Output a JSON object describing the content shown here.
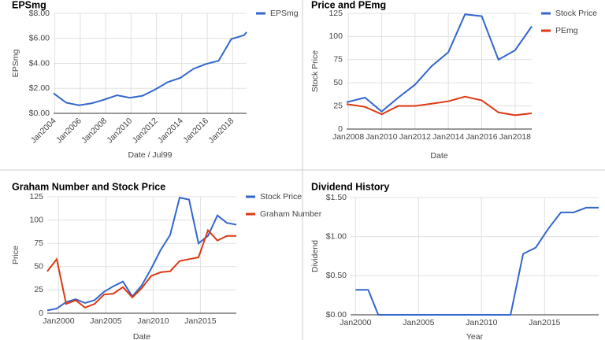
{
  "chart_data": [
    {
      "type": "line",
      "title": "EPSmg",
      "x_label": "Date / Jul99",
      "y_label": "EPSmg",
      "x": [
        2003.9,
        2004.9,
        2005.9,
        2006.9,
        2007.9,
        2008.9,
        2009.9,
        2010.9,
        2011.9,
        2012.9,
        2013.9,
        2014.9,
        2015.9,
        2016.9,
        2017.9,
        2018.9,
        2019.1
      ],
      "series": [
        {
          "name": "EPSmg",
          "color": "#3366cc",
          "values": [
            1.6,
            0.85,
            0.65,
            0.8,
            1.1,
            1.45,
            1.25,
            1.4,
            1.9,
            2.5,
            2.85,
            3.55,
            3.95,
            4.2,
            5.95,
            6.25,
            6.5
          ]
        }
      ],
      "xlim": [
        2003.9,
        2019.1
      ],
      "xticks": [
        {
          "value": 2004,
          "label": "Jan2004"
        },
        {
          "value": 2006,
          "label": "Jan2006"
        },
        {
          "value": 2008,
          "label": "Jan2008"
        },
        {
          "value": 2010,
          "label": "Jan2010"
        },
        {
          "value": 2012,
          "label": "Jan2012"
        },
        {
          "value": 2014,
          "label": "Jan2014"
        },
        {
          "value": 2016,
          "label": "Jan2016"
        },
        {
          "value": 2018,
          "label": "Jan2018"
        }
      ],
      "ylim": [
        0,
        8
      ],
      "yticks": [
        {
          "value": 0,
          "label": "$0.00"
        },
        {
          "value": 2,
          "label": "$2.00"
        },
        {
          "value": 4,
          "label": "$4.00"
        },
        {
          "value": 6,
          "label": "$6.00"
        },
        {
          "value": 8,
          "label": "$8.00"
        }
      ],
      "grid": true,
      "legend": "right"
    },
    {
      "type": "line",
      "title": "Price and PEmg",
      "x_label": "Date",
      "y_label": "Stock Price",
      "x": [
        2007.9,
        2009,
        2010,
        2011,
        2012,
        2013,
        2014,
        2015,
        2016,
        2017,
        2018,
        2019
      ],
      "series": [
        {
          "name": "Stock Price",
          "color": "#3366cc",
          "values": [
            29,
            34,
            19,
            34,
            48,
            68,
            83,
            124,
            122,
            75,
            85,
            111
          ]
        },
        {
          "name": "PEmg",
          "color": "#dc3912",
          "values": [
            27,
            24,
            16,
            25,
            25,
            27.5,
            30,
            35,
            31,
            18,
            15,
            17
          ]
        }
      ],
      "xlim": [
        2007.9,
        2019
      ],
      "xticks": [
        {
          "value": 2008,
          "label": "Jan2008"
        },
        {
          "value": 2010,
          "label": "Jan2010"
        },
        {
          "value": 2012,
          "label": "Jan2012"
        },
        {
          "value": 2014,
          "label": "Jan2014"
        },
        {
          "value": 2016,
          "label": "Jan2016"
        },
        {
          "value": 2018,
          "label": "Jan2018"
        }
      ],
      "ylim": [
        0,
        125
      ],
      "yticks": [
        0,
        25,
        50,
        75,
        100,
        125
      ],
      "grid": true,
      "legend": "right"
    },
    {
      "type": "line",
      "title": "Graham Number and Stock Price",
      "x_label": "Date",
      "y_label": "Price",
      "x": [
        1998.8,
        1999.8,
        2000.8,
        2001.8,
        2002.8,
        2003.8,
        2004.8,
        2005.8,
        2006.8,
        2007.8,
        2008.8,
        2009.8,
        2010.8,
        2011.8,
        2012.8,
        2013.8,
        2014.8,
        2015.8,
        2016.8,
        2017.8,
        2018.8
      ],
      "series": [
        {
          "name": "Stock Price",
          "color": "#3366cc",
          "values": [
            3,
            5,
            12,
            15,
            11,
            14,
            23,
            29,
            34,
            18,
            30,
            48,
            68,
            84,
            124,
            122,
            75,
            83,
            105,
            97,
            95
          ]
        },
        {
          "name": "Graham Number",
          "color": "#dc3912",
          "values": [
            45,
            58,
            10,
            14,
            6,
            10,
            20,
            21,
            28,
            17,
            27,
            40,
            44,
            45,
            56,
            58,
            60,
            89,
            78,
            83,
            83
          ]
        }
      ],
      "xlim": [
        1998.8,
        2018.8
      ],
      "xticks": [
        {
          "value": 2000,
          "label": "Jan2000"
        },
        {
          "value": 2005,
          "label": "Jan2005"
        },
        {
          "value": 2010,
          "label": "Jan2010"
        },
        {
          "value": 2015,
          "label": "Jan2015"
        }
      ],
      "ylim": [
        0,
        125
      ],
      "yticks": [
        0,
        25,
        50,
        75,
        100,
        125
      ],
      "grid": true,
      "legend": "right"
    },
    {
      "type": "line",
      "title": "Dividend History",
      "x_label": "Year",
      "y_label": "Dividend",
      "x": [
        2000,
        2001,
        2001.8,
        2012.3,
        2013.3,
        2014.3,
        2015.3,
        2016.3,
        2017.3,
        2018.3,
        2019.3
      ],
      "series": [
        {
          "name": "Dividend",
          "color": "#3366cc",
          "values": [
            0.32,
            0.32,
            0,
            0,
            0.78,
            0.86,
            1.1,
            1.31,
            1.31,
            1.37,
            1.37
          ]
        }
      ],
      "xlim": [
        1999.6,
        2019.3
      ],
      "xticks": [
        {
          "value": 2000,
          "label": "Jan2000"
        },
        {
          "value": 2005,
          "label": "Jan2005"
        },
        {
          "value": 2010,
          "label": "Jan2010"
        },
        {
          "value": 2015,
          "label": "Jan2015"
        }
      ],
      "ylim": [
        0,
        1.5
      ],
      "yticks": [
        {
          "value": 0,
          "label": "$0.00"
        },
        {
          "value": 0.5,
          "label": "$0.50"
        },
        {
          "value": 1,
          "label": "$1.00"
        },
        {
          "value": 1.5,
          "label": "$1.50"
        }
      ],
      "grid": true,
      "legend": "none"
    }
  ]
}
